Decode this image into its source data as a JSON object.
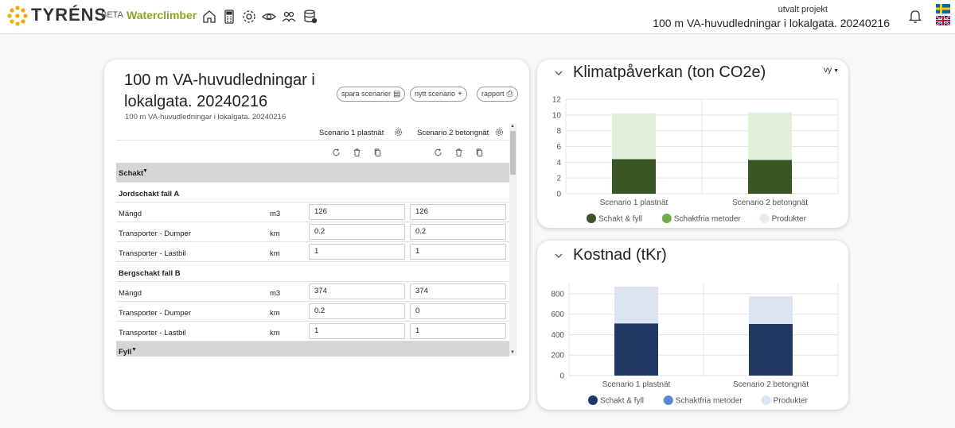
{
  "header": {
    "brand": "TYRÉNS",
    "beta": "BETA",
    "app_name": "Waterclimber",
    "nav_icons": [
      "home-icon",
      "calculator-icon",
      "gear-icon",
      "eye-icon",
      "users-icon",
      "database-icon"
    ],
    "project_caption": "utvalt projekt",
    "project_name": "100 m VA-huvudledningar i lokalgata. 20240216",
    "languages": [
      "sv",
      "en"
    ]
  },
  "left_panel": {
    "title": "100 m VA-huvudledningar i lokalgata. 20240216",
    "subtitle": "100 m VA-huvudledningar i lokalgata. 20240216",
    "buttons": {
      "save": "spara scenarier",
      "new": "nytt scenario",
      "report": "rapport"
    },
    "scenarios": [
      "Scenario 1 plastnät",
      "Scenario 2 betongnät"
    ],
    "table": {
      "section_schakt": "Schakt",
      "groups": [
        {
          "name": "Jordschakt fall A",
          "rows": [
            {
              "label": "Mängd",
              "unit": "m3",
              "s1": "126",
              "s2": "126"
            },
            {
              "label": "Transporter - Dumper",
              "unit": "km",
              "s1": "0.2",
              "s2": "0.2"
            },
            {
              "label": "Transporter - Lastbil",
              "unit": "km",
              "s1": "1",
              "s2": "1"
            }
          ]
        },
        {
          "name": "Bergschakt fall B",
          "rows": [
            {
              "label": "Mängd",
              "unit": "m3",
              "s1": "374",
              "s2": "374"
            },
            {
              "label": "Transporter - Dumper",
              "unit": "km",
              "s1": "0.2",
              "s2": "0"
            },
            {
              "label": "Transporter - Lastbil",
              "unit": "km",
              "s1": "1",
              "s2": "1"
            }
          ]
        }
      ],
      "section_fyll": "Fyll"
    }
  },
  "chart_data": [
    {
      "type": "bar",
      "title": "Klimatpåverkan (ton CO2e)",
      "view_menu": "vy",
      "stacked": true,
      "categories": [
        "Scenario 1 plastnät",
        "Scenario 2 betongnät"
      ],
      "series": [
        {
          "name": "Schakt & fyll",
          "values": [
            4.4,
            4.3
          ],
          "color": "#375623"
        },
        {
          "name": "Schaktfria metoder",
          "values": [
            0,
            0
          ],
          "color": "#70ad47"
        },
        {
          "name": "Produkter",
          "values": [
            5.8,
            6.0
          ],
          "color": "#e2efda"
        }
      ],
      "ylim": [
        0,
        12
      ],
      "yticks": [
        0,
        2,
        4,
        6,
        8,
        10,
        12
      ],
      "grid": true,
      "legend": "bottom"
    },
    {
      "type": "bar",
      "title": "Kostnad (tKr)",
      "stacked": true,
      "categories": [
        "Scenario 1 plastnät",
        "Scenario 2 betongnät"
      ],
      "series": [
        {
          "name": "Schakt & fyll",
          "values": [
            510,
            505
          ],
          "color": "#1f3864"
        },
        {
          "name": "Schaktfria metoder",
          "values": [
            0,
            0
          ],
          "color": "#5b87d6"
        },
        {
          "name": "Produkter",
          "values": [
            360,
            270
          ],
          "color": "#dce4f2"
        }
      ],
      "ylim": [
        0,
        900
      ],
      "yticks": [
        0,
        200,
        400,
        600,
        800
      ],
      "grid": true,
      "legend": "bottom"
    }
  ]
}
